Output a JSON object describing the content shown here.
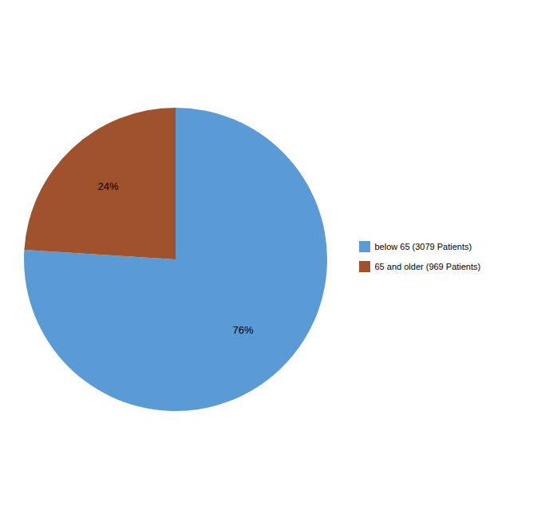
{
  "chart_data": {
    "type": "pie",
    "categories": [
      "below 65 (3079 Patients)",
      "65 and older (969 Patients)"
    ],
    "values": [
      76,
      24
    ],
    "value_labels": [
      "76%",
      "24%"
    ],
    "data_labels": true,
    "colors": [
      "#5B9BD5",
      "#A0522D"
    ],
    "legend": "right"
  }
}
